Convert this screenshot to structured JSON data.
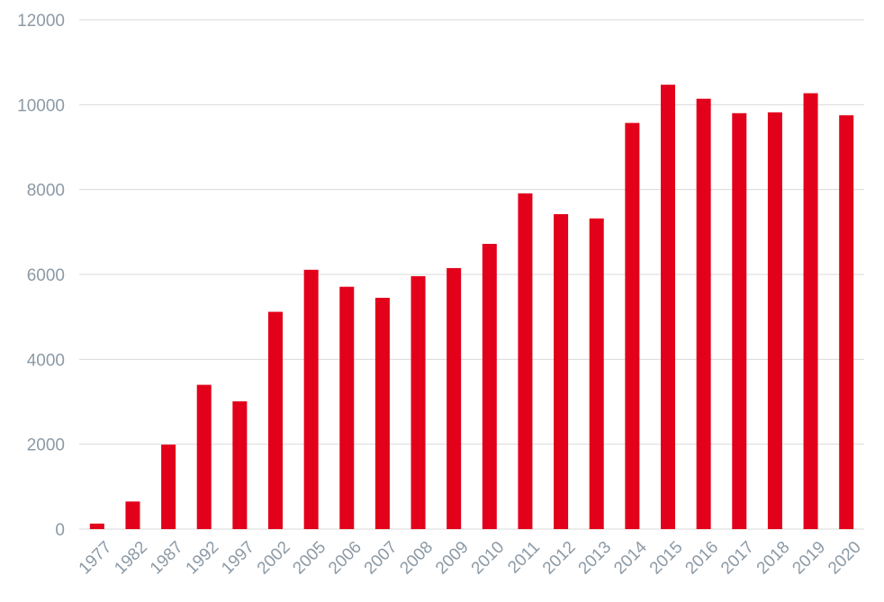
{
  "chart_data": {
    "type": "bar",
    "title": "",
    "xlabel": "",
    "ylabel": "",
    "categories": [
      "1977",
      "1982",
      "1987",
      "1992",
      "1997",
      "2002",
      "2005",
      "2006",
      "2007",
      "2008",
      "2009",
      "2010",
      "2011",
      "2012",
      "2013",
      "2014",
      "2015",
      "2016",
      "2017",
      "2018",
      "2019",
      "2020"
    ],
    "series": [
      {
        "name": "",
        "color": "#e2001a",
        "values": [
          130,
          650,
          1990,
          3400,
          3010,
          5120,
          6110,
          5710,
          5450,
          5960,
          6150,
          6720,
          7910,
          7420,
          7320,
          9570,
          10470,
          10140,
          9800,
          9820,
          10270,
          9750
        ]
      }
    ],
    "ylim": [
      0,
      12000
    ],
    "yticks": [
      0,
      2000,
      4000,
      6000,
      8000,
      10000,
      12000
    ],
    "yticks_labels": [
      "0",
      "2000",
      "4000",
      "6000",
      "8000",
      "10000",
      "12000"
    ],
    "grid": true,
    "legend": "none",
    "colors": {
      "bar": "#e2001a",
      "grid": "#d9d9d9",
      "tick_label": "#8c9aa6"
    }
  }
}
